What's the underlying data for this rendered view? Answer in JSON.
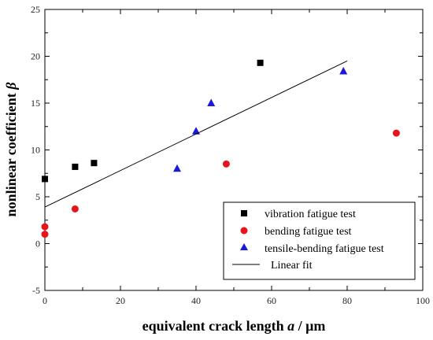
{
  "chart_data": {
    "type": "scatter",
    "xlabel": {
      "prefix": "equivalent crack length ",
      "var": "a",
      "suffix": " / μm"
    },
    "ylabel": {
      "prefix": "nonlinear coefficient ",
      "var": "β"
    },
    "xlim": [
      0,
      100
    ],
    "ylim": [
      -5,
      25
    ],
    "x_ticks": [
      0,
      20,
      40,
      60,
      80,
      100
    ],
    "y_ticks": [
      -5,
      0,
      5,
      10,
      15,
      20,
      25
    ],
    "grid": false,
    "legend_position": "bottom-right",
    "series": [
      {
        "name": "vibration fatigue test",
        "marker": "square",
        "color": "#000000",
        "points": [
          [
            0,
            6.9
          ],
          [
            8,
            8.2
          ],
          [
            13,
            8.6
          ],
          [
            57,
            19.3
          ]
        ]
      },
      {
        "name": "bending fatigue test",
        "marker": "circle",
        "color": "#e8141b",
        "points": [
          [
            0,
            1.8
          ],
          [
            0,
            1.0
          ],
          [
            8,
            3.7
          ],
          [
            48,
            8.5
          ],
          [
            93,
            11.8
          ]
        ]
      },
      {
        "name": "tensile-bending fatigue test",
        "marker": "triangle",
        "color": "#1a1ad6",
        "points": [
          [
            35,
            8.0
          ],
          [
            40,
            12.0
          ],
          [
            44,
            15.0
          ],
          [
            79,
            18.4
          ]
        ]
      },
      {
        "name": "Linear fit",
        "marker": "line",
        "color": "#000000",
        "points": [
          [
            0,
            3.9
          ],
          [
            80,
            19.5
          ]
        ]
      }
    ]
  }
}
